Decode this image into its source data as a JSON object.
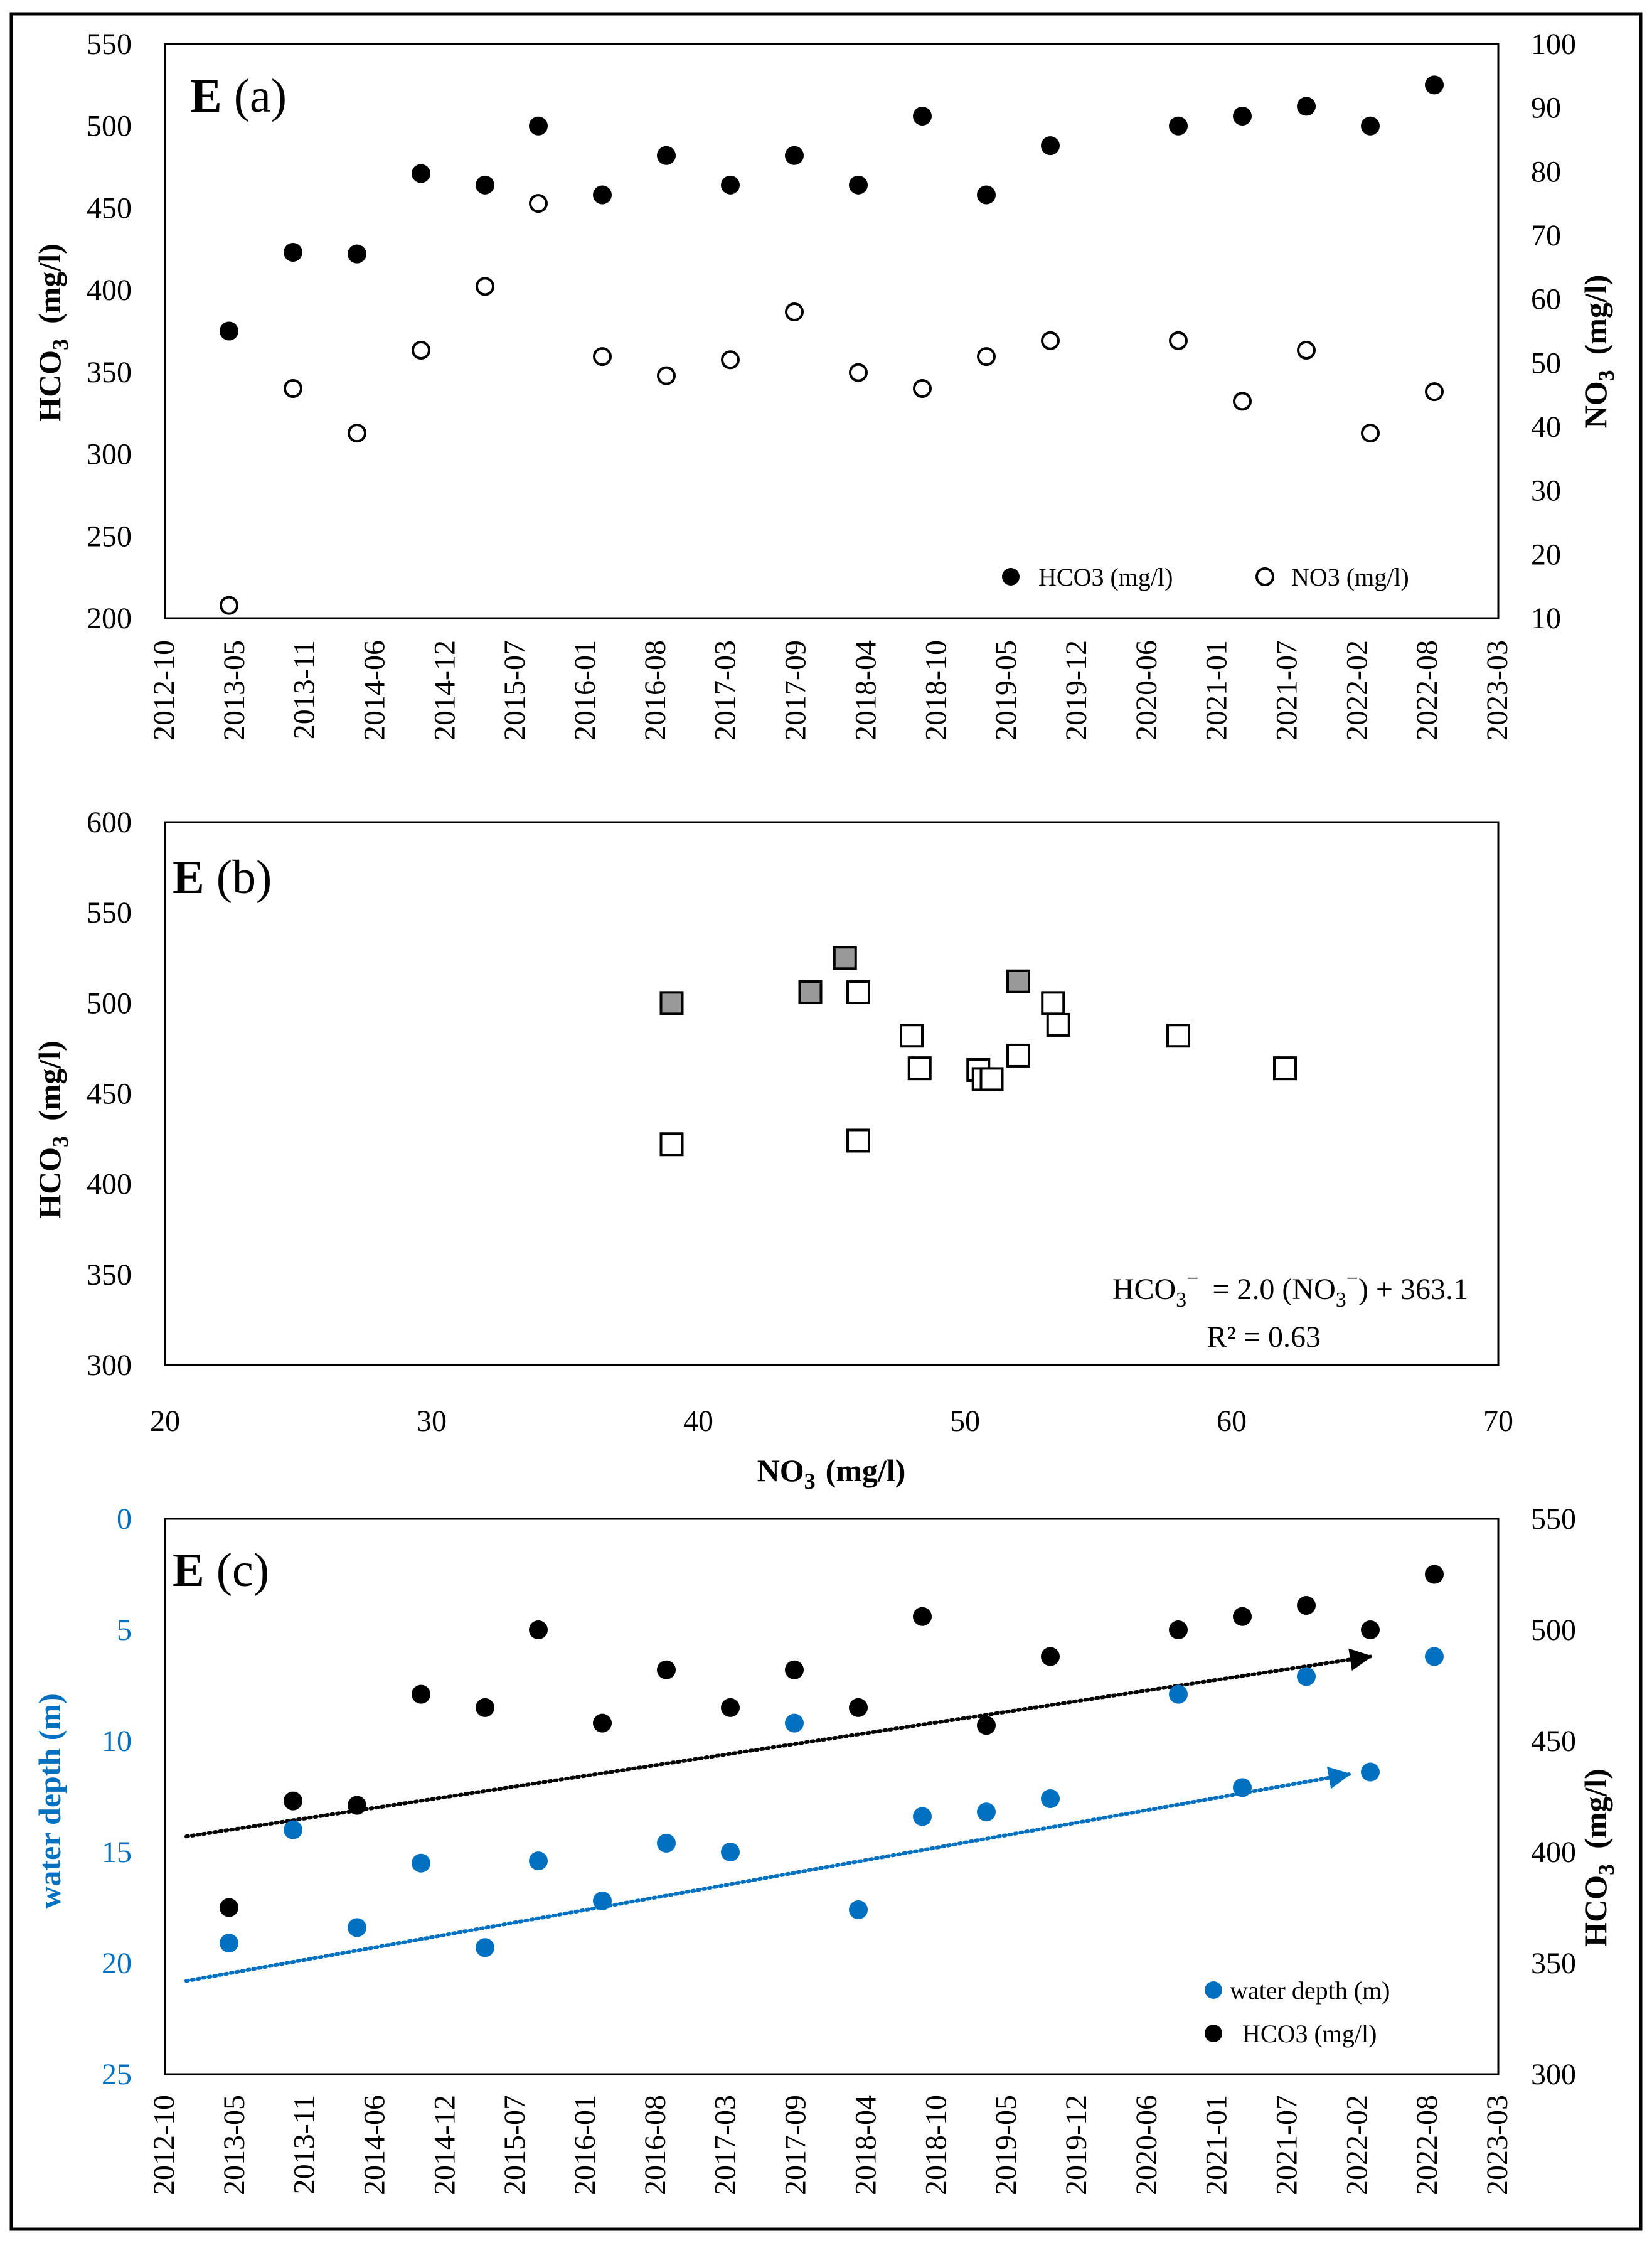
{
  "figure": {
    "colors": {
      "black": "#000000",
      "blue": "#0070C0",
      "grey": "#999999",
      "white": "#ffffff"
    }
  },
  "chart_data": [
    {
      "type": "scatter",
      "panel_label": {
        "letter": "E",
        "tag": "(a)"
      },
      "title": "",
      "x_axis": {
        "type": "date",
        "ticks": [
          "2012-10",
          "2013-05",
          "2013-11",
          "2014-06",
          "2014-12",
          "2015-07",
          "2016-01",
          "2016-08",
          "2017-03",
          "2017-09",
          "2018-04",
          "2018-10",
          "2019-05",
          "2019-12",
          "2020-06",
          "2021-01",
          "2021-07",
          "2022-02",
          "2022-08",
          "2023-03"
        ]
      },
      "y_left": {
        "label_main": "HCO",
        "label_sub": "3",
        "label_unit": "(mg/l)",
        "min": 200,
        "max": 550,
        "step": 50
      },
      "y_right": {
        "label_main": "NO",
        "label_sub": "3",
        "label_unit": "(mg/l)",
        "min": 10,
        "max": 100,
        "step": 10
      },
      "x": [
        "2013-04",
        "2013-10",
        "2014-04",
        "2014-10",
        "2015-04",
        "2015-09",
        "2016-03",
        "2016-09",
        "2017-03",
        "2017-09",
        "2018-03",
        "2018-09",
        "2019-03",
        "2019-09",
        "2020-09",
        "2021-03",
        "2021-09",
        "2022-03",
        "2022-09"
      ],
      "series": [
        {
          "name": "HCO3 (mg/l)",
          "axis": "left",
          "marker": "filled-circle",
          "values": [
            375,
            423,
            422,
            471,
            464,
            500,
            458,
            482,
            464,
            482,
            464,
            506,
            458,
            488,
            500,
            506,
            512,
            500,
            525
          ]
        },
        {
          "name": "NO3 (mg/l)",
          "axis": "right",
          "marker": "open-circle",
          "values": [
            12,
            46,
            39,
            52,
            62,
            75,
            51,
            48,
            50.5,
            58,
            48.5,
            46,
            51,
            53.5,
            53.5,
            44,
            52,
            39,
            45.5
          ]
        }
      ],
      "legend": "bottom-right"
    },
    {
      "type": "scatter",
      "panel_label": {
        "letter": "E",
        "tag": "(b)"
      },
      "title": "",
      "x_axis": {
        "label_main": "NO",
        "label_sub": "3",
        "label_unit": "(mg/l)",
        "min": 20,
        "max": 70,
        "step": 10
      },
      "y_axis": {
        "label_main": "HCO",
        "label_sub": "3",
        "label_unit": "(mg/l)",
        "min": 300,
        "max": 600,
        "step": 50
      },
      "series": [
        {
          "marker": "open-square",
          "points": [
            [
              39,
              422
            ],
            [
              46,
              424
            ],
            [
              46,
              506
            ],
            [
              48,
              482
            ],
            [
              48.3,
              464
            ],
            [
              50.5,
              463
            ],
            [
              50.7,
              458
            ],
            [
              51,
              458
            ],
            [
              52,
              471
            ],
            [
              53.3,
              500
            ],
            [
              53.5,
              488
            ],
            [
              58,
              482
            ],
            [
              62,
              464
            ]
          ]
        },
        {
          "marker": "grey-square",
          "points": [
            [
              39,
              500
            ],
            [
              44.2,
              506
            ],
            [
              45.5,
              525
            ],
            [
              52,
              512
            ]
          ]
        }
      ],
      "equation": {
        "lhs_main": "HCO",
        "lhs_sub": "3",
        "lhs_sup": "−",
        "mid": "= 2.0 (NO",
        "mid_sub": "3",
        "mid_sup": "−",
        "rhs": ") + 363.1"
      },
      "r_squared": "R² = 0.63"
    },
    {
      "type": "scatter",
      "panel_label": {
        "letter": "E",
        "tag": "(c)"
      },
      "title": "",
      "x_axis": {
        "type": "date",
        "ticks": [
          "2012-10",
          "2013-05",
          "2013-11",
          "2014-06",
          "2014-12",
          "2015-07",
          "2016-01",
          "2016-08",
          "2017-03",
          "2017-09",
          "2018-04",
          "2018-10",
          "2019-05",
          "2019-12",
          "2020-06",
          "2021-01",
          "2021-07",
          "2022-02",
          "2022-08",
          "2023-03"
        ]
      },
      "y_left": {
        "label": "water depth (m)",
        "min": 0,
        "max": 25,
        "step": 5,
        "reversed": true
      },
      "y_right": {
        "label_main": "HCO",
        "label_sub": "3",
        "label_unit": "(mg/l)",
        "min": 300,
        "max": 550,
        "step": 50
      },
      "x": [
        "2013-04",
        "2013-10",
        "2014-04",
        "2014-10",
        "2015-04",
        "2015-09",
        "2016-03",
        "2016-09",
        "2017-03",
        "2017-09",
        "2018-03",
        "2018-09",
        "2019-03",
        "2019-09",
        "2020-09",
        "2021-03",
        "2021-09",
        "2022-03",
        "2022-09"
      ],
      "series": [
        {
          "name": "water depth (m)",
          "axis": "left",
          "marker": "blue-circle",
          "values": [
            19.1,
            14,
            18.4,
            15.5,
            19.3,
            15.4,
            17.2,
            14.6,
            15,
            9.2,
            17.6,
            13.4,
            13.2,
            12.6,
            7.9,
            12.1,
            7.1,
            11.4,
            6.2
          ]
        },
        {
          "name": "HCO3 (mg/l)",
          "axis": "right",
          "marker": "filled-circle",
          "values": [
            375,
            423,
            421,
            471,
            465,
            500,
            458,
            482,
            465,
            482,
            465,
            506,
            457,
            488,
            500,
            506,
            511,
            500,
            525
          ]
        }
      ],
      "trendlines": [
        {
          "series": "HCO3 (mg/l)",
          "axis": "right",
          "style": "dotted-arrow",
          "from": [
            "2012-12",
            407
          ],
          "to": [
            "2022-03",
            488
          ]
        },
        {
          "series": "water depth (m)",
          "axis": "left",
          "style": "dotted-arrow",
          "from": [
            "2012-12",
            20.8
          ],
          "to": [
            "2022-01",
            11.5
          ]
        }
      ],
      "legend": "bottom-right"
    }
  ]
}
